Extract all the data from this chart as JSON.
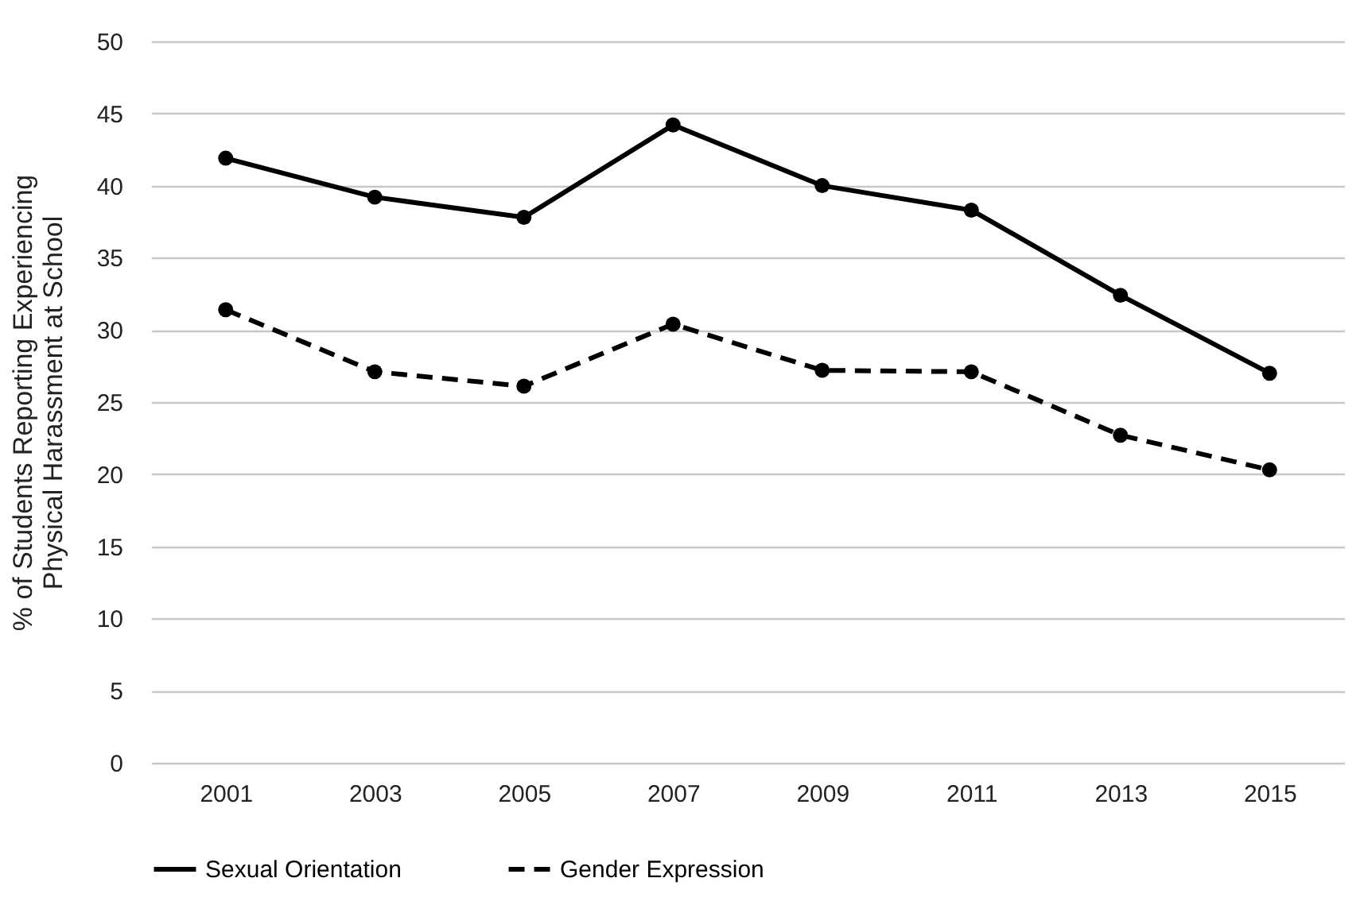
{
  "chart_data": {
    "type": "line",
    "ylabel": "% of Students Reporting Experiencing Physical Harassment at School",
    "categories": [
      "2001",
      "2003",
      "2005",
      "2007",
      "2009",
      "2011",
      "2013",
      "2015"
    ],
    "series": [
      {
        "name": "Sexual Orientation",
        "color": "#000000",
        "line_style": "solid",
        "values": [
          41.9,
          39.2,
          37.8,
          44.2,
          40.0,
          38.3,
          32.4,
          27.0
        ]
      },
      {
        "name": "Gender Expression",
        "color": "#000000",
        "line_style": "dashed",
        "values": [
          31.4,
          27.1,
          26.1,
          30.4,
          27.2,
          27.1,
          22.7,
          20.3
        ]
      }
    ],
    "ylim": [
      0,
      50
    ],
    "yticks": [
      0,
      5,
      10,
      15,
      20,
      25,
      30,
      35,
      40,
      45,
      50
    ],
    "grid": "y",
    "legend": "bottom",
    "marker": "circle"
  }
}
